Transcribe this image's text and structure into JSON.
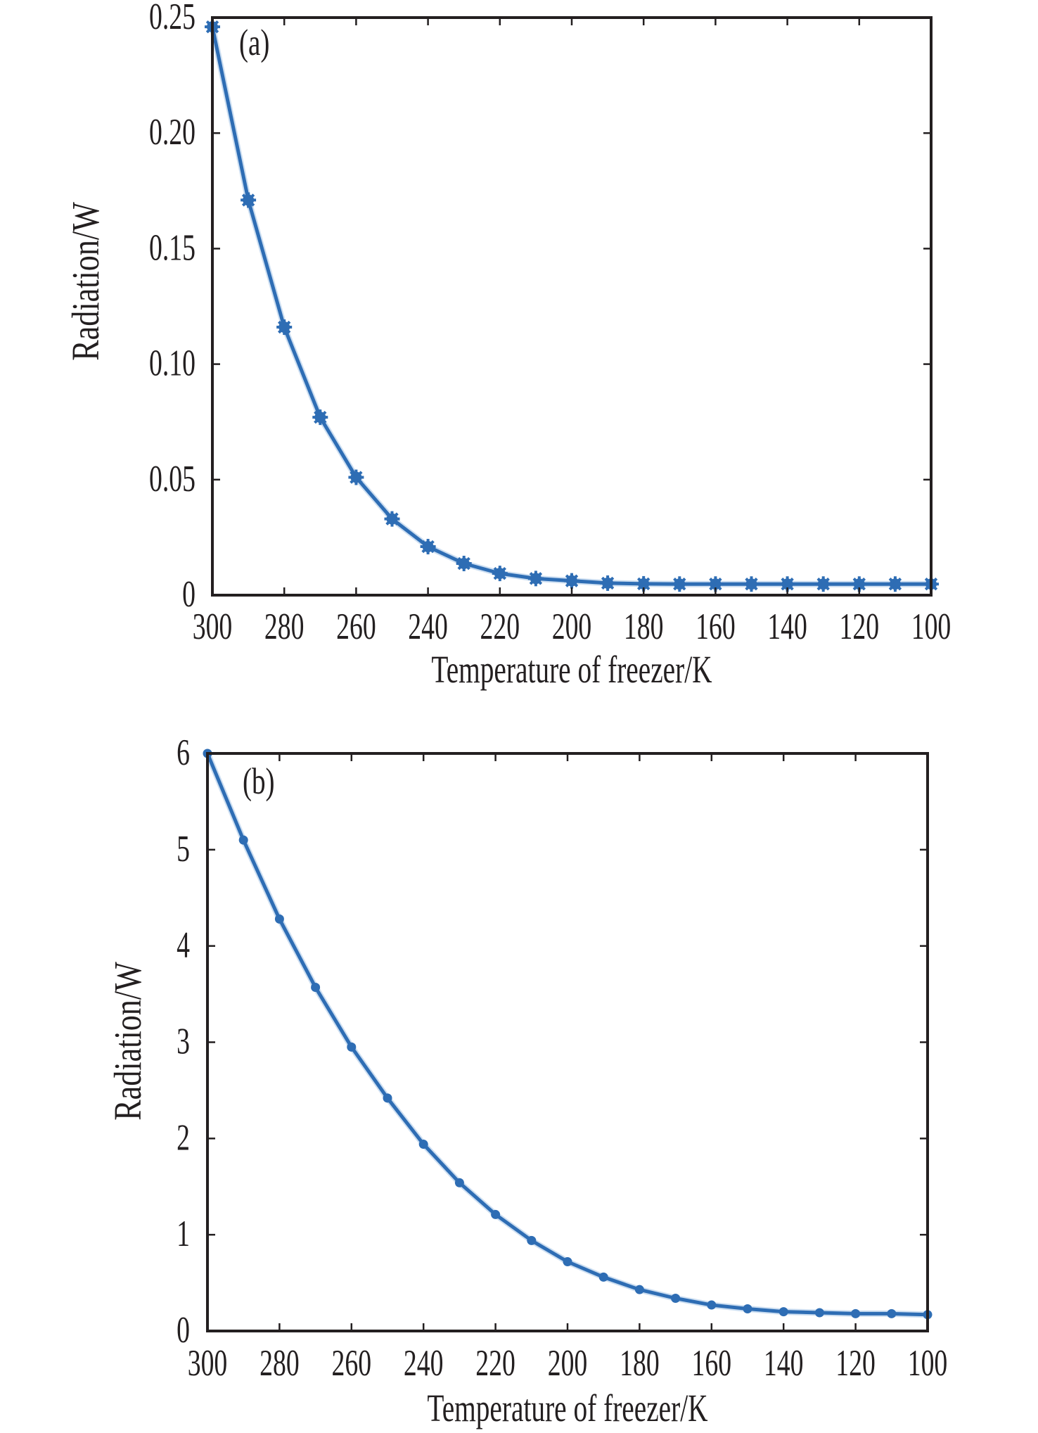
{
  "chart_data": [
    {
      "type": "line",
      "panel_label": "(a)",
      "xlabel": "Temperature of freezer/K",
      "ylabel": "Radiation/W",
      "xlim": [
        300,
        100
      ],
      "ylim": [
        0,
        0.25
      ],
      "x_ticks": [
        300,
        280,
        260,
        240,
        220,
        200,
        180,
        160,
        140,
        120,
        100
      ],
      "x_tick_labels": [
        "300",
        "280",
        "260",
        "240",
        "220",
        "200",
        "180",
        "160",
        "140",
        "120",
        "100"
      ],
      "y_ticks": [
        0,
        0.05,
        0.1,
        0.15,
        0.2,
        0.25
      ],
      "y_tick_labels": [
        "0",
        "0.05",
        "0.10",
        "0.15",
        "0.20",
        "0.25"
      ],
      "grid": false,
      "marker": "asterisk",
      "color": "#2e6db4",
      "series": [
        {
          "name": "Radiation",
          "x": [
            300,
            290,
            280,
            270,
            260,
            250,
            240,
            230,
            220,
            210,
            200,
            190,
            180,
            170,
            160,
            150,
            140,
            130,
            120,
            110,
            100
          ],
          "values": [
            0.246,
            0.171,
            0.116,
            0.077,
            0.051,
            0.033,
            0.021,
            0.0137,
            0.0094,
            0.0072,
            0.0062,
            0.0052,
            0.0049,
            0.0048,
            0.0048,
            0.0048,
            0.0048,
            0.0048,
            0.0048,
            0.0048,
            0.0048
          ]
        }
      ]
    },
    {
      "type": "line",
      "panel_label": "(b)",
      "xlabel": "Temperature of freezer/K",
      "ylabel": "Radiation/W",
      "xlim": [
        300,
        100
      ],
      "ylim": [
        0,
        6
      ],
      "x_ticks": [
        300,
        280,
        260,
        240,
        220,
        200,
        180,
        160,
        140,
        120,
        100
      ],
      "x_tick_labels": [
        "300",
        "280",
        "260",
        "240",
        "220",
        "200",
        "180",
        "160",
        "140",
        "120",
        "100"
      ],
      "y_ticks": [
        0,
        1,
        2,
        3,
        4,
        5,
        6
      ],
      "y_tick_labels": [
        "0",
        "1",
        "2",
        "3",
        "4",
        "5",
        "6"
      ],
      "grid": false,
      "marker": "dot",
      "color": "#2e6db4",
      "series": [
        {
          "name": "Radiation",
          "x": [
            300,
            290,
            280,
            270,
            260,
            250,
            240,
            230,
            220,
            210,
            200,
            190,
            180,
            170,
            160,
            150,
            140,
            130,
            120,
            110,
            100
          ],
          "values": [
            6.0,
            5.1,
            4.28,
            3.57,
            2.95,
            2.42,
            1.94,
            1.54,
            1.21,
            0.94,
            0.72,
            0.56,
            0.43,
            0.34,
            0.27,
            0.23,
            0.2,
            0.19,
            0.18,
            0.18,
            0.17
          ]
        }
      ]
    }
  ]
}
